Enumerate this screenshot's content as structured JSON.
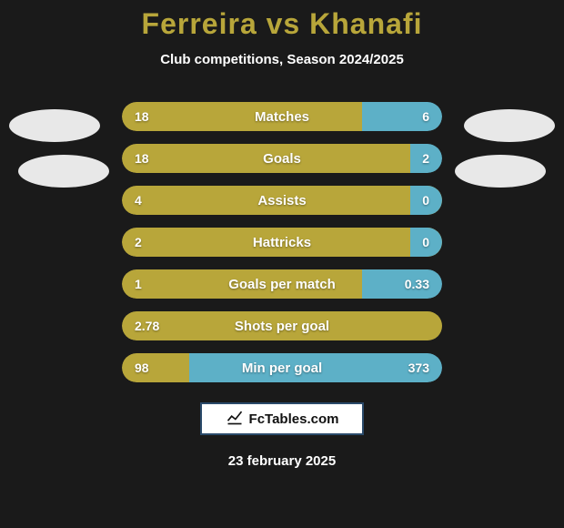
{
  "title": "Ferreira vs Khanafi",
  "subtitle": "Club competitions, Season 2024/2025",
  "footer_brand": "FcTables.com",
  "footer_date": "23 february 2025",
  "colors": {
    "left_bar": "#b8a63a",
    "right_bar": "#5db0c7",
    "track": "#333333",
    "background": "#1a1a1a",
    "title": "#b8a63a",
    "text": "#ffffff",
    "badge_border": "#2a4a6a"
  },
  "stats": [
    {
      "label": "Matches",
      "left_val": "18",
      "right_val": "6",
      "left_pct": 75,
      "right_pct": 25
    },
    {
      "label": "Goals",
      "left_val": "18",
      "right_val": "2",
      "left_pct": 90,
      "right_pct": 10
    },
    {
      "label": "Assists",
      "left_val": "4",
      "right_val": "0",
      "left_pct": 100,
      "right_pct": 10
    },
    {
      "label": "Hattricks",
      "left_val": "2",
      "right_val": "0",
      "left_pct": 100,
      "right_pct": 10
    },
    {
      "label": "Goals per match",
      "left_val": "1",
      "right_val": "0.33",
      "left_pct": 75,
      "right_pct": 25
    },
    {
      "label": "Shots per goal",
      "left_val": "2.78",
      "right_val": "",
      "left_pct": 100,
      "right_pct": 0
    },
    {
      "label": "Min per goal",
      "left_val": "98",
      "right_val": "373",
      "left_pct": 21,
      "right_pct": 79
    }
  ]
}
